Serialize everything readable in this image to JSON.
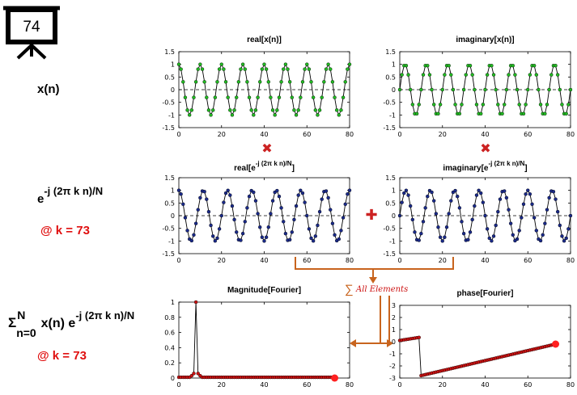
{
  "slide_number": "74",
  "row_labels": {
    "signal": "x(n)",
    "kernel_base": "e",
    "kernel_exp": "-j (2π k n)/N",
    "k_note_1": "@ k = 73",
    "sum_sigma": "Σ",
    "sum_upper": "N",
    "sum_lower": "n=0",
    "sum_mid": " x(n) e",
    "sum_exp": "-j (2π k n)/N",
    "k_note_2": "@ k = 73"
  },
  "operators": {
    "multiply": "✖",
    "add": "✚"
  },
  "sum_annotation": {
    "symbol": "∑",
    "text": "All Elements"
  },
  "colors": {
    "green_marker": "#22bb22",
    "blue_marker": "#1a2a8a",
    "red_marker": "#cc1111",
    "operator_red": "#cc2222",
    "arrow": "#c8641e"
  },
  "chart_data": [
    {
      "type": "line",
      "id": "real_x",
      "title": "real[x(n)]",
      "n": 80,
      "xlim": [
        0,
        80
      ],
      "ylim": [
        -1.5,
        1.5
      ],
      "xticks": [
        0,
        20,
        40,
        60,
        80
      ],
      "yticks": [
        1.5,
        1,
        0.5,
        0,
        -0.5,
        -1,
        -1.5
      ],
      "cycles_over_80_samples": 8,
      "phase": "cos",
      "marker_color": "#22bb22"
    },
    {
      "type": "line",
      "id": "imag_x",
      "title": "imaginary[x(n)]",
      "n": 80,
      "xlim": [
        0,
        80
      ],
      "ylim": [
        -1.5,
        1.5
      ],
      "xticks": [
        0,
        20,
        40,
        60,
        80
      ],
      "yticks": [
        1.5,
        1,
        0.5,
        0,
        -0.5,
        -1,
        -1.5
      ],
      "cycles_over_80_samples": 8,
      "phase": "sin",
      "marker_color": "#22bb22"
    },
    {
      "type": "line",
      "id": "real_e",
      "title_main": "real[e",
      "title_sup": "-j (2π k n)/N",
      "title_end": "]",
      "n": 80,
      "xlim": [
        0,
        80
      ],
      "ylim": [
        -1.5,
        1.5
      ],
      "xticks": [
        0,
        20,
        40,
        60,
        80
      ],
      "yticks": [
        1.5,
        1,
        0.5,
        0,
        -0.5,
        -1,
        -1.5
      ],
      "cycles_over_80_samples": 7,
      "phase": "cos",
      "marker_color": "#1a2a8a"
    },
    {
      "type": "line",
      "id": "imag_e",
      "title_main": "imaginary[e",
      "title_sup": "-j (2π k n)/N",
      "title_end": "]",
      "n": 80,
      "xlim": [
        0,
        80
      ],
      "ylim": [
        -1.5,
        1.5
      ],
      "xticks": [
        0,
        20,
        40,
        60,
        80
      ],
      "yticks": [
        1.5,
        1,
        0.5,
        0,
        -0.5,
        -1,
        -1.5
      ],
      "cycles_over_80_samples": 7,
      "phase": "sin",
      "marker_color": "#1a2a8a"
    },
    {
      "type": "line",
      "id": "magnitude",
      "title": "Magnitude[Fourier]",
      "n": 74,
      "xlim": [
        0,
        80
      ],
      "ylim": [
        0,
        1
      ],
      "xticks": [
        0,
        20,
        40,
        60,
        80
      ],
      "yticks": [
        1,
        0.8,
        0.6,
        0.4,
        0.2,
        0
      ],
      "peak_index": 8,
      "peak_value": 1.0,
      "baseline": 0.01,
      "marker_color": "#cc1111",
      "highlight_point": {
        "x": 73,
        "y": 0.0
      }
    },
    {
      "type": "line",
      "id": "phase",
      "title": "phase[Fourier]",
      "n": 74,
      "xlim": [
        0,
        80
      ],
      "ylim": [
        -3,
        3
      ],
      "xticks": [
        0,
        20,
        40,
        60,
        80
      ],
      "yticks": [
        3,
        2,
        1,
        0,
        -1,
        -2,
        -3
      ],
      "jump_index": 9,
      "start_value": 0.1,
      "before_jump_value": 0.35,
      "after_jump_value": -2.8,
      "end_value": -0.2,
      "marker_color": "#cc1111",
      "highlight_point": {
        "x": 73,
        "y": -0.2
      }
    }
  ]
}
